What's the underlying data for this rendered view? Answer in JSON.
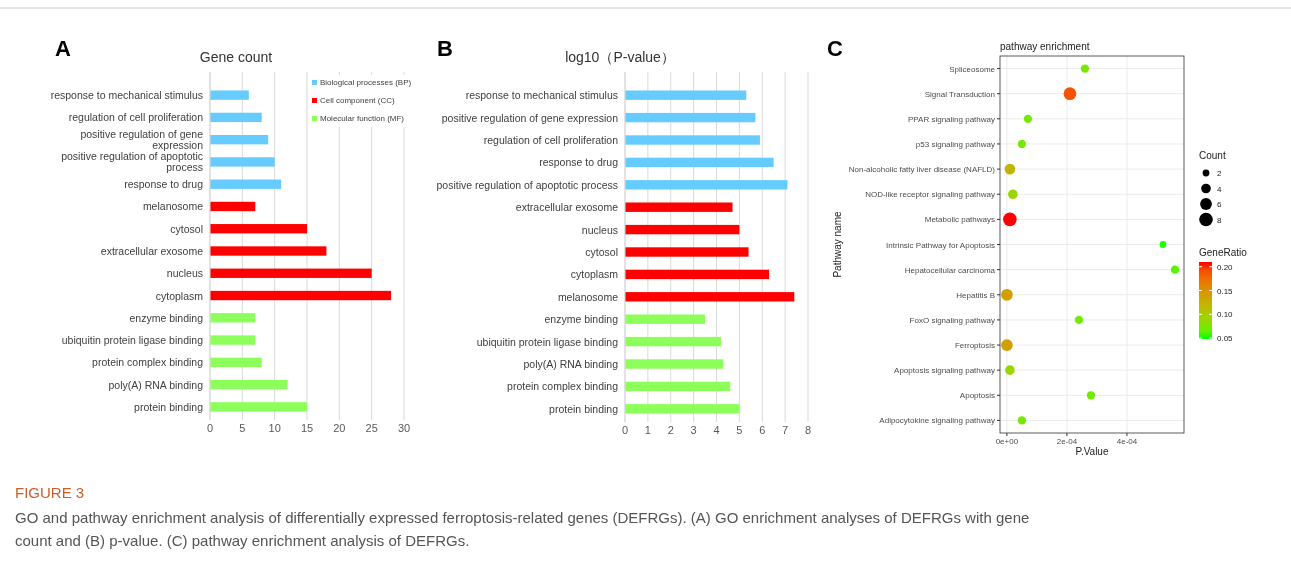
{
  "chart_data": [
    {
      "type": "bar",
      "orientation": "horizontal",
      "title": "Gene count",
      "annotations": [
        "A",
        "FIGURE 3",
        "GO and pathway enrichment analysis of differentially expressed ferroptosis-related genes (DEFRGs). (A) GO enrichment analyses of DEFRGs with gene count and (B) p-value. (C) pathway enrichment analysis of DEFRGs."
      ],
      "categories": [
        "response to mechanical stimulus",
        "regulation of cell proliferation",
        "positive regulation of gene expression",
        "positive regulation of apoptotic process",
        "response to drug",
        "melanosome",
        "cytosol",
        "extracellular exosome",
        "nucleus",
        "cytoplasm",
        "enzyme binding",
        "ubiquitin protein ligase binding",
        "protein complex binding",
        "poly(A) RNA binding",
        "protein binding"
      ],
      "series": [
        {
          "name": "Biological processes (BP)",
          "color": "#66ccff",
          "values": [
            6,
            8,
            9,
            10,
            11,
            null,
            null,
            null,
            null,
            null,
            null,
            null,
            null,
            null,
            null
          ]
        },
        {
          "name": "Cell component (CC)",
          "color": "#ff0000",
          "values": [
            null,
            null,
            null,
            null,
            null,
            7,
            15,
            18,
            25,
            28,
            null,
            null,
            null,
            null,
            null
          ]
        },
        {
          "name": "Molecular function (MF)",
          "color": "#8cff5a",
          "values": [
            null,
            null,
            null,
            null,
            null,
            null,
            null,
            null,
            null,
            null,
            7,
            7,
            8,
            12,
            15
          ]
        }
      ],
      "xlim": [
        0,
        30
      ],
      "xticks": [
        0,
        5,
        10,
        15,
        20,
        25,
        30
      ],
      "grid": "x",
      "legend": "top right"
    },
    {
      "type": "bar",
      "orientation": "horizontal",
      "title": "log10（P-value）",
      "annotations": [
        "B"
      ],
      "categories": [
        "response to mechanical stimulus",
        "positive regulation of gene expression",
        "regulation of cell proliferation",
        "response to drug",
        "positive regulation of apoptotic process",
        "extracellular exosome",
        "nucleus",
        "cytosol",
        "cytoplasm",
        "melanosome",
        "enzyme binding",
        "ubiquitin protein ligase binding",
        "poly(A) RNA binding",
        "protein complex binding",
        "protein binding"
      ],
      "series": [
        {
          "color": "#66ccff",
          "values": [
            5.3,
            5.7,
            5.9,
            6.5,
            7.1,
            null,
            null,
            null,
            null,
            null,
            null,
            null,
            null,
            null,
            null
          ]
        },
        {
          "color": "#ff0000",
          "values": [
            null,
            null,
            null,
            null,
            null,
            4.7,
            5.0,
            5.4,
            6.3,
            7.4,
            null,
            null,
            null,
            null,
            null
          ]
        },
        {
          "color": "#8cff5a",
          "values": [
            null,
            null,
            null,
            null,
            null,
            null,
            null,
            null,
            null,
            null,
            3.5,
            4.2,
            4.3,
            4.6,
            5.0
          ]
        }
      ],
      "xlim": [
        0,
        8
      ],
      "xticks": [
        0,
        1,
        2,
        3,
        4,
        5,
        6,
        7,
        8
      ],
      "grid": "x"
    },
    {
      "type": "bubble",
      "orientation": "horizontal",
      "title": "pathway  enrichment",
      "xlabel": "P.Value",
      "ylabel": "Pathway name",
      "legend_title": "Count",
      "clabel": "GeneRatio",
      "annotations": [
        "C"
      ],
      "categories": [
        "Spliceosome",
        "Signal Transduction",
        "PPAR signaling pathway",
        "p53 signaling pathway",
        "Non-alcoholic fatty liver disease (NAFLD)",
        "NOD-like receptor signaling pathway",
        "Metabolic pathways",
        "Intrinsic Pathway for Apoptosis",
        "Hepatocellular carcinoma",
        "Hepatitis B",
        "FoxO signaling pathway",
        "Ferroptosis",
        "Apoptosis signaling pathway",
        "Apoptosis",
        "Adipocytokine signaling pathway"
      ],
      "values": [
        0.00026,
        0.00021,
        7e-05,
        5e-05,
        1e-05,
        2e-05,
        1e-05,
        0.00052,
        0.00056,
        0,
        0.00024,
        0,
        1e-05,
        0.00028,
        5e-05
      ],
      "sizes": [
        3,
        7,
        3,
        3,
        5,
        4,
        8,
        2,
        3,
        6,
        3,
        6,
        4,
        3,
        3
      ],
      "size_legend": [
        2,
        4,
        6,
        8
      ],
      "cvalues": [
        0.07,
        0.19,
        0.07,
        0.07,
        0.12,
        0.09,
        0.21,
        0.05,
        0.06,
        0.14,
        0.07,
        0.14,
        0.09,
        0.07,
        0.07
      ],
      "clim": [
        0.048,
        0.21
      ],
      "cticks": [
        {
          "value": 0.05,
          "label": "0.05"
        },
        {
          "value": 0.1,
          "label": "0.10"
        },
        {
          "value": 0.15,
          "label": "0.15"
        },
        {
          "value": 0.2,
          "label": "0.20"
        }
      ],
      "xlim": [
        -2.3e-05,
        0.00059
      ],
      "xticks": [
        {
          "value": 0,
          "label": "0e+00"
        },
        {
          "value": 0.0002,
          "label": "2e-04"
        },
        {
          "value": 0.0004,
          "label": "4e-04"
        }
      ],
      "grid": true
    }
  ]
}
